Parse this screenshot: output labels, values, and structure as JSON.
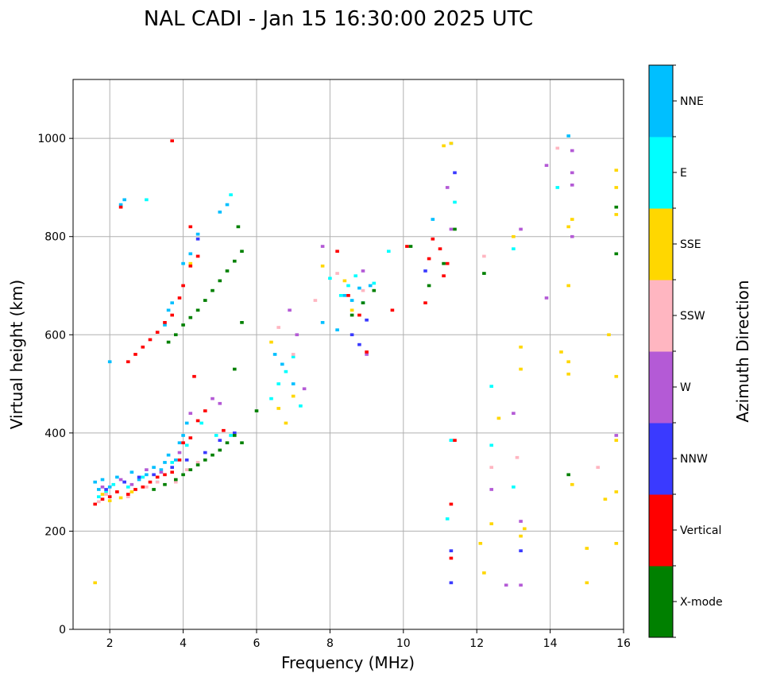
{
  "chart_data": {
    "type": "scatter",
    "title": "NAL CADI - Jan 15 16:30:00 2025 UTC",
    "xlabel": "Frequency (MHz)",
    "ylabel": "Virtual height (km)",
    "xlim": [
      1,
      16
    ],
    "ylim": [
      0,
      1120
    ],
    "xticks": [
      2,
      4,
      6,
      8,
      10,
      12,
      14,
      16
    ],
    "yticks": [
      0,
      200,
      400,
      600,
      800,
      1000
    ],
    "grid": true,
    "colorbar": {
      "label": "Azimuth Direction",
      "categories": [
        {
          "name": "X-mode",
          "color": "#008000"
        },
        {
          "name": "Vertical",
          "color": "#ff0000"
        },
        {
          "name": "NNW",
          "color": "#3a3aff"
        },
        {
          "name": "W",
          "color": "#b45ad6"
        },
        {
          "name": "SSW",
          "color": "#ffb6c1"
        },
        {
          "name": "SSE",
          "color": "#ffd700"
        },
        {
          "name": "E",
          "color": "#00ffff"
        },
        {
          "name": "NNE",
          "color": "#00bfff"
        }
      ]
    },
    "cell_size": {
      "freq": 0.1,
      "height": 6
    },
    "series": [
      {
        "name": "NNE",
        "points": [
          [
            1.6,
            300
          ],
          [
            1.7,
            285
          ],
          [
            1.8,
            305
          ],
          [
            2.0,
            290
          ],
          [
            2.2,
            310
          ],
          [
            2.4,
            300
          ],
          [
            2.6,
            320
          ],
          [
            2.8,
            305
          ],
          [
            3.0,
            315
          ],
          [
            3.2,
            330
          ],
          [
            3.4,
            325
          ],
          [
            3.5,
            340
          ],
          [
            3.6,
            355
          ],
          [
            3.8,
            345
          ],
          [
            3.9,
            380
          ],
          [
            4.0,
            395
          ],
          [
            4.1,
            420
          ],
          [
            3.5,
            620
          ],
          [
            3.6,
            650
          ],
          [
            3.7,
            665
          ],
          [
            4.0,
            745
          ],
          [
            4.2,
            765
          ],
          [
            4.4,
            805
          ],
          [
            5.0,
            850
          ],
          [
            5.2,
            865
          ],
          [
            2.3,
            865
          ],
          [
            2.4,
            875
          ],
          [
            2.0,
            545
          ],
          [
            6.5,
            560
          ],
          [
            6.7,
            540
          ],
          [
            7.0,
            500
          ],
          [
            7.8,
            625
          ],
          [
            8.2,
            610
          ],
          [
            8.4,
            680
          ],
          [
            8.6,
            670
          ],
          [
            8.8,
            695
          ],
          [
            9.1,
            700
          ],
          [
            10.8,
            835
          ],
          [
            11.3,
            990
          ],
          [
            14.5,
            1005
          ],
          [
            11.3,
            385
          ]
        ]
      },
      {
        "name": "E",
        "points": [
          [
            1.7,
            270
          ],
          [
            1.9,
            280
          ],
          [
            2.1,
            295
          ],
          [
            2.5,
            290
          ],
          [
            2.9,
            310
          ],
          [
            3.3,
            300
          ],
          [
            3.7,
            340
          ],
          [
            4.1,
            375
          ],
          [
            4.5,
            420
          ],
          [
            4.9,
            395
          ],
          [
            5.3,
            395
          ],
          [
            3.0,
            875
          ],
          [
            5.3,
            885
          ],
          [
            6.4,
            470
          ],
          [
            6.6,
            500
          ],
          [
            6.8,
            525
          ],
          [
            7.0,
            555
          ],
          [
            7.2,
            455
          ],
          [
            8.0,
            715
          ],
          [
            8.3,
            680
          ],
          [
            8.5,
            700
          ],
          [
            8.7,
            720
          ],
          [
            8.9,
            665
          ],
          [
            9.2,
            705
          ],
          [
            9.6,
            770
          ],
          [
            11.4,
            870
          ],
          [
            12.4,
            495
          ],
          [
            12.4,
            375
          ],
          [
            13.0,
            775
          ],
          [
            13.0,
            290
          ],
          [
            14.2,
            900
          ],
          [
            11.3,
            385
          ],
          [
            11.2,
            225
          ]
        ]
      },
      {
        "name": "SSE",
        "points": [
          [
            1.6,
            95
          ],
          [
            1.8,
            275
          ],
          [
            2.0,
            262
          ],
          [
            2.3,
            268
          ],
          [
            2.6,
            280
          ],
          [
            4.2,
            745
          ],
          [
            6.4,
            585
          ],
          [
            6.6,
            450
          ],
          [
            6.8,
            420
          ],
          [
            7.0,
            475
          ],
          [
            7.8,
            740
          ],
          [
            8.4,
            710
          ],
          [
            8.6,
            650
          ],
          [
            11.1,
            985
          ],
          [
            11.3,
            990
          ],
          [
            12.1,
            175
          ],
          [
            12.4,
            215
          ],
          [
            12.6,
            430
          ],
          [
            13.2,
            575
          ],
          [
            13.2,
            530
          ],
          [
            13.3,
            205
          ],
          [
            14.3,
            565
          ],
          [
            14.5,
            820
          ],
          [
            14.6,
            835
          ],
          [
            14.5,
            700
          ],
          [
            14.5,
            545
          ],
          [
            14.5,
            520
          ],
          [
            14.6,
            295
          ],
          [
            15.0,
            165
          ],
          [
            15.0,
            95
          ],
          [
            15.5,
            265
          ],
          [
            15.6,
            600
          ],
          [
            15.8,
            935
          ],
          [
            15.8,
            900
          ],
          [
            15.8,
            845
          ],
          [
            15.8,
            515
          ],
          [
            15.8,
            385
          ],
          [
            15.8,
            280
          ],
          [
            15.8,
            175
          ],
          [
            12.2,
            115
          ],
          [
            13.0,
            800
          ],
          [
            13.2,
            190
          ]
        ]
      },
      {
        "name": "SSW",
        "points": [
          [
            1.7,
            260
          ],
          [
            1.9,
            275
          ],
          [
            2.2,
            280
          ],
          [
            2.5,
            270
          ],
          [
            2.7,
            285
          ],
          [
            3.0,
            290
          ],
          [
            3.3,
            300
          ],
          [
            3.8,
            300
          ],
          [
            4.1,
            325
          ],
          [
            4.4,
            340
          ],
          [
            6.6,
            615
          ],
          [
            7.0,
            560
          ],
          [
            7.6,
            670
          ],
          [
            8.2,
            725
          ],
          [
            8.9,
            690
          ],
          [
            12.2,
            760
          ],
          [
            12.4,
            330
          ],
          [
            13.1,
            350
          ],
          [
            14.2,
            980
          ],
          [
            15.3,
            330
          ]
        ]
      },
      {
        "name": "W",
        "points": [
          [
            1.8,
            290
          ],
          [
            2.3,
            305
          ],
          [
            2.6,
            295
          ],
          [
            3.0,
            325
          ],
          [
            3.4,
            320
          ],
          [
            3.9,
            360
          ],
          [
            4.2,
            440
          ],
          [
            4.8,
            470
          ],
          [
            5.0,
            460
          ],
          [
            6.9,
            650
          ],
          [
            7.1,
            600
          ],
          [
            7.3,
            490
          ],
          [
            7.8,
            780
          ],
          [
            8.9,
            730
          ],
          [
            9.0,
            560
          ],
          [
            11.2,
            900
          ],
          [
            11.3,
            815
          ],
          [
            12.4,
            285
          ],
          [
            12.8,
            90
          ],
          [
            13.0,
            440
          ],
          [
            13.2,
            220
          ],
          [
            13.2,
            815
          ],
          [
            13.9,
            945
          ],
          [
            13.9,
            675
          ],
          [
            14.6,
            975
          ],
          [
            14.6,
            930
          ],
          [
            14.6,
            905
          ],
          [
            14.6,
            800
          ],
          [
            15.8,
            395
          ],
          [
            13.2,
            90
          ]
        ]
      },
      {
        "name": "NNW",
        "points": [
          [
            1.9,
            285
          ],
          [
            2.4,
            300
          ],
          [
            2.8,
            310
          ],
          [
            3.2,
            315
          ],
          [
            3.7,
            330
          ],
          [
            4.1,
            345
          ],
          [
            4.6,
            360
          ],
          [
            5.0,
            385
          ],
          [
            5.4,
            400
          ],
          [
            4.4,
            795
          ],
          [
            8.6,
            600
          ],
          [
            8.8,
            580
          ],
          [
            9.0,
            630
          ],
          [
            10.6,
            730
          ],
          [
            11.4,
            930
          ],
          [
            11.3,
            160
          ],
          [
            13.2,
            160
          ],
          [
            11.3,
            95
          ]
        ]
      },
      {
        "name": "Vertical",
        "points": [
          [
            1.6,
            255
          ],
          [
            1.8,
            265
          ],
          [
            2.0,
            270
          ],
          [
            2.2,
            280
          ],
          [
            2.5,
            275
          ],
          [
            2.7,
            285
          ],
          [
            2.9,
            290
          ],
          [
            3.1,
            300
          ],
          [
            3.3,
            310
          ],
          [
            3.5,
            315
          ],
          [
            3.7,
            320
          ],
          [
            3.9,
            345
          ],
          [
            4.0,
            380
          ],
          [
            4.2,
            390
          ],
          [
            2.5,
            545
          ],
          [
            2.7,
            560
          ],
          [
            2.9,
            575
          ],
          [
            3.1,
            590
          ],
          [
            3.3,
            605
          ],
          [
            3.5,
            625
          ],
          [
            3.7,
            640
          ],
          [
            3.9,
            675
          ],
          [
            4.0,
            700
          ],
          [
            4.2,
            740
          ],
          [
            4.4,
            760
          ],
          [
            4.2,
            820
          ],
          [
            3.7,
            995
          ],
          [
            4.3,
            515
          ],
          [
            4.6,
            445
          ],
          [
            4.4,
            425
          ],
          [
            5.1,
            405
          ],
          [
            8.2,
            770
          ],
          [
            8.5,
            680
          ],
          [
            8.8,
            640
          ],
          [
            9.0,
            565
          ],
          [
            9.7,
            650
          ],
          [
            10.1,
            780
          ],
          [
            10.6,
            665
          ],
          [
            10.7,
            755
          ],
          [
            10.8,
            795
          ],
          [
            11.0,
            775
          ],
          [
            11.1,
            720
          ],
          [
            11.2,
            745
          ],
          [
            11.4,
            385
          ],
          [
            11.3,
            255
          ],
          [
            11.3,
            145
          ],
          [
            2.3,
            860
          ]
        ]
      },
      {
        "name": "X-mode",
        "points": [
          [
            3.2,
            285
          ],
          [
            3.5,
            295
          ],
          [
            3.8,
            305
          ],
          [
            4.0,
            315
          ],
          [
            4.2,
            325
          ],
          [
            4.4,
            335
          ],
          [
            4.6,
            345
          ],
          [
            4.8,
            355
          ],
          [
            5.0,
            365
          ],
          [
            5.2,
            380
          ],
          [
            5.4,
            395
          ],
          [
            3.6,
            585
          ],
          [
            3.8,
            600
          ],
          [
            4.0,
            620
          ],
          [
            4.2,
            635
          ],
          [
            4.4,
            650
          ],
          [
            4.6,
            670
          ],
          [
            4.8,
            690
          ],
          [
            5.0,
            710
          ],
          [
            5.2,
            730
          ],
          [
            5.4,
            750
          ],
          [
            5.6,
            770
          ],
          [
            5.5,
            820
          ],
          [
            6.0,
            445
          ],
          [
            5.6,
            625
          ],
          [
            5.6,
            380
          ],
          [
            5.4,
            530
          ],
          [
            8.6,
            640
          ],
          [
            8.9,
            665
          ],
          [
            9.2,
            690
          ],
          [
            10.2,
            780
          ],
          [
            10.7,
            700
          ],
          [
            11.1,
            745
          ],
          [
            11.4,
            815
          ],
          [
            12.2,
            725
          ],
          [
            14.5,
            315
          ],
          [
            15.8,
            860
          ],
          [
            15.8,
            765
          ]
        ]
      }
    ]
  }
}
